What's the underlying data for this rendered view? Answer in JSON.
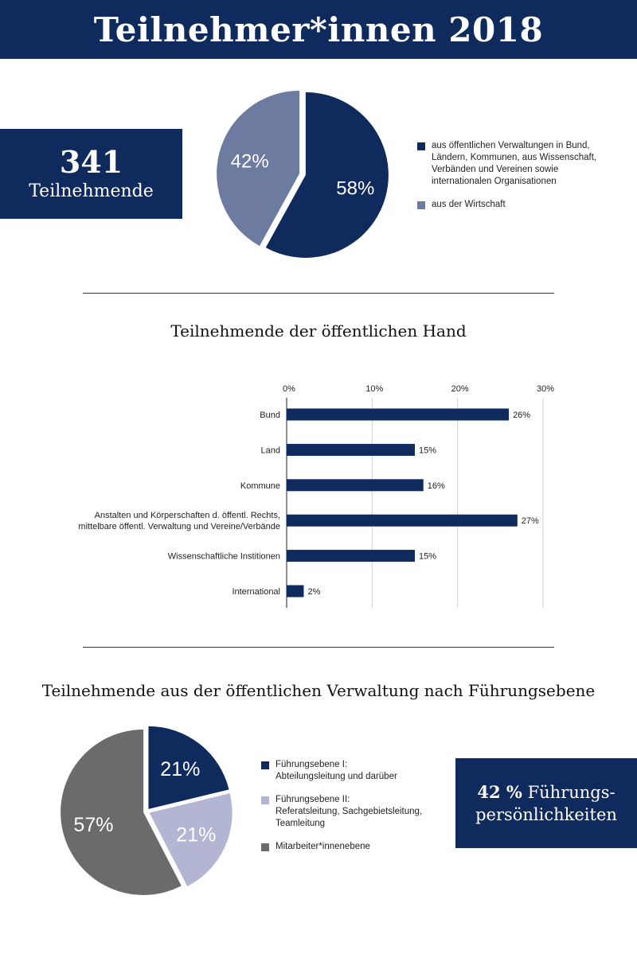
{
  "header": {
    "title": "Teilnehmer*innen 2018"
  },
  "total": {
    "number": "341",
    "label": "Teilnehmende"
  },
  "colors": {
    "navy": "#0f2a5c",
    "slate": "#6e7ba1",
    "lavender": "#b3b6d3",
    "gray": "#6b6b6b"
  },
  "chart_data": [
    {
      "type": "pie",
      "title": "",
      "slices": [
        {
          "label": "aus öffentlichen Verwaltungen in Bund, Ländern, Kommunen, aus Wissenschaft, Verbänden und Vereinen sowie internationalen Organisationen",
          "value": 58,
          "display": "58%",
          "color": "#0f2a5c"
        },
        {
          "label": "aus der Wirtschaft",
          "value": 42,
          "display": "42%",
          "color": "#6e7ba1"
        }
      ],
      "legend_position": "right"
    },
    {
      "type": "bar",
      "orientation": "horizontal",
      "title": "Teilnehmende der öffentlichen Hand",
      "categories": [
        "Bund",
        "Land",
        "Kommune",
        "Anstalten und Körperschaften d. öffentl. Rechts,|mittelbare öffentl. Verwaltung und Vereine/Verbände",
        "Wissenschaftliche Institionen",
        "International"
      ],
      "values": [
        26,
        15,
        16,
        27,
        15,
        2
      ],
      "value_labels": [
        "26%",
        "15%",
        "16%",
        "27%",
        "15%",
        "2%"
      ],
      "xlim": [
        0,
        30
      ],
      "xticks": [
        0,
        10,
        20,
        30
      ],
      "xtick_labels": [
        "0%",
        "10%",
        "20%",
        "30%"
      ],
      "grid": true,
      "color": "#0f2a5c"
    },
    {
      "type": "pie",
      "title": "Teilnehmende aus der öffentlichen Verwaltung nach Führungsebene",
      "slices": [
        {
          "label": "Führungsebene I:|Abteilungsleitung und darüber",
          "value": 21,
          "display": "21%",
          "color": "#0f2a5c"
        },
        {
          "label": "Führungsebene II:|Referatsleitung, Sachgebietsleitung,|Teamleitung",
          "value": 21,
          "display": "21%",
          "color": "#b3b6d3"
        },
        {
          "label": "Mitarbeiter*innenebene",
          "value": 57,
          "display": "57%",
          "color": "#6b6b6b"
        }
      ],
      "legend_position": "right"
    }
  ],
  "leaders": {
    "value": "42 %",
    "text": "Führungs-",
    "text2": "persönlichkeiten"
  }
}
